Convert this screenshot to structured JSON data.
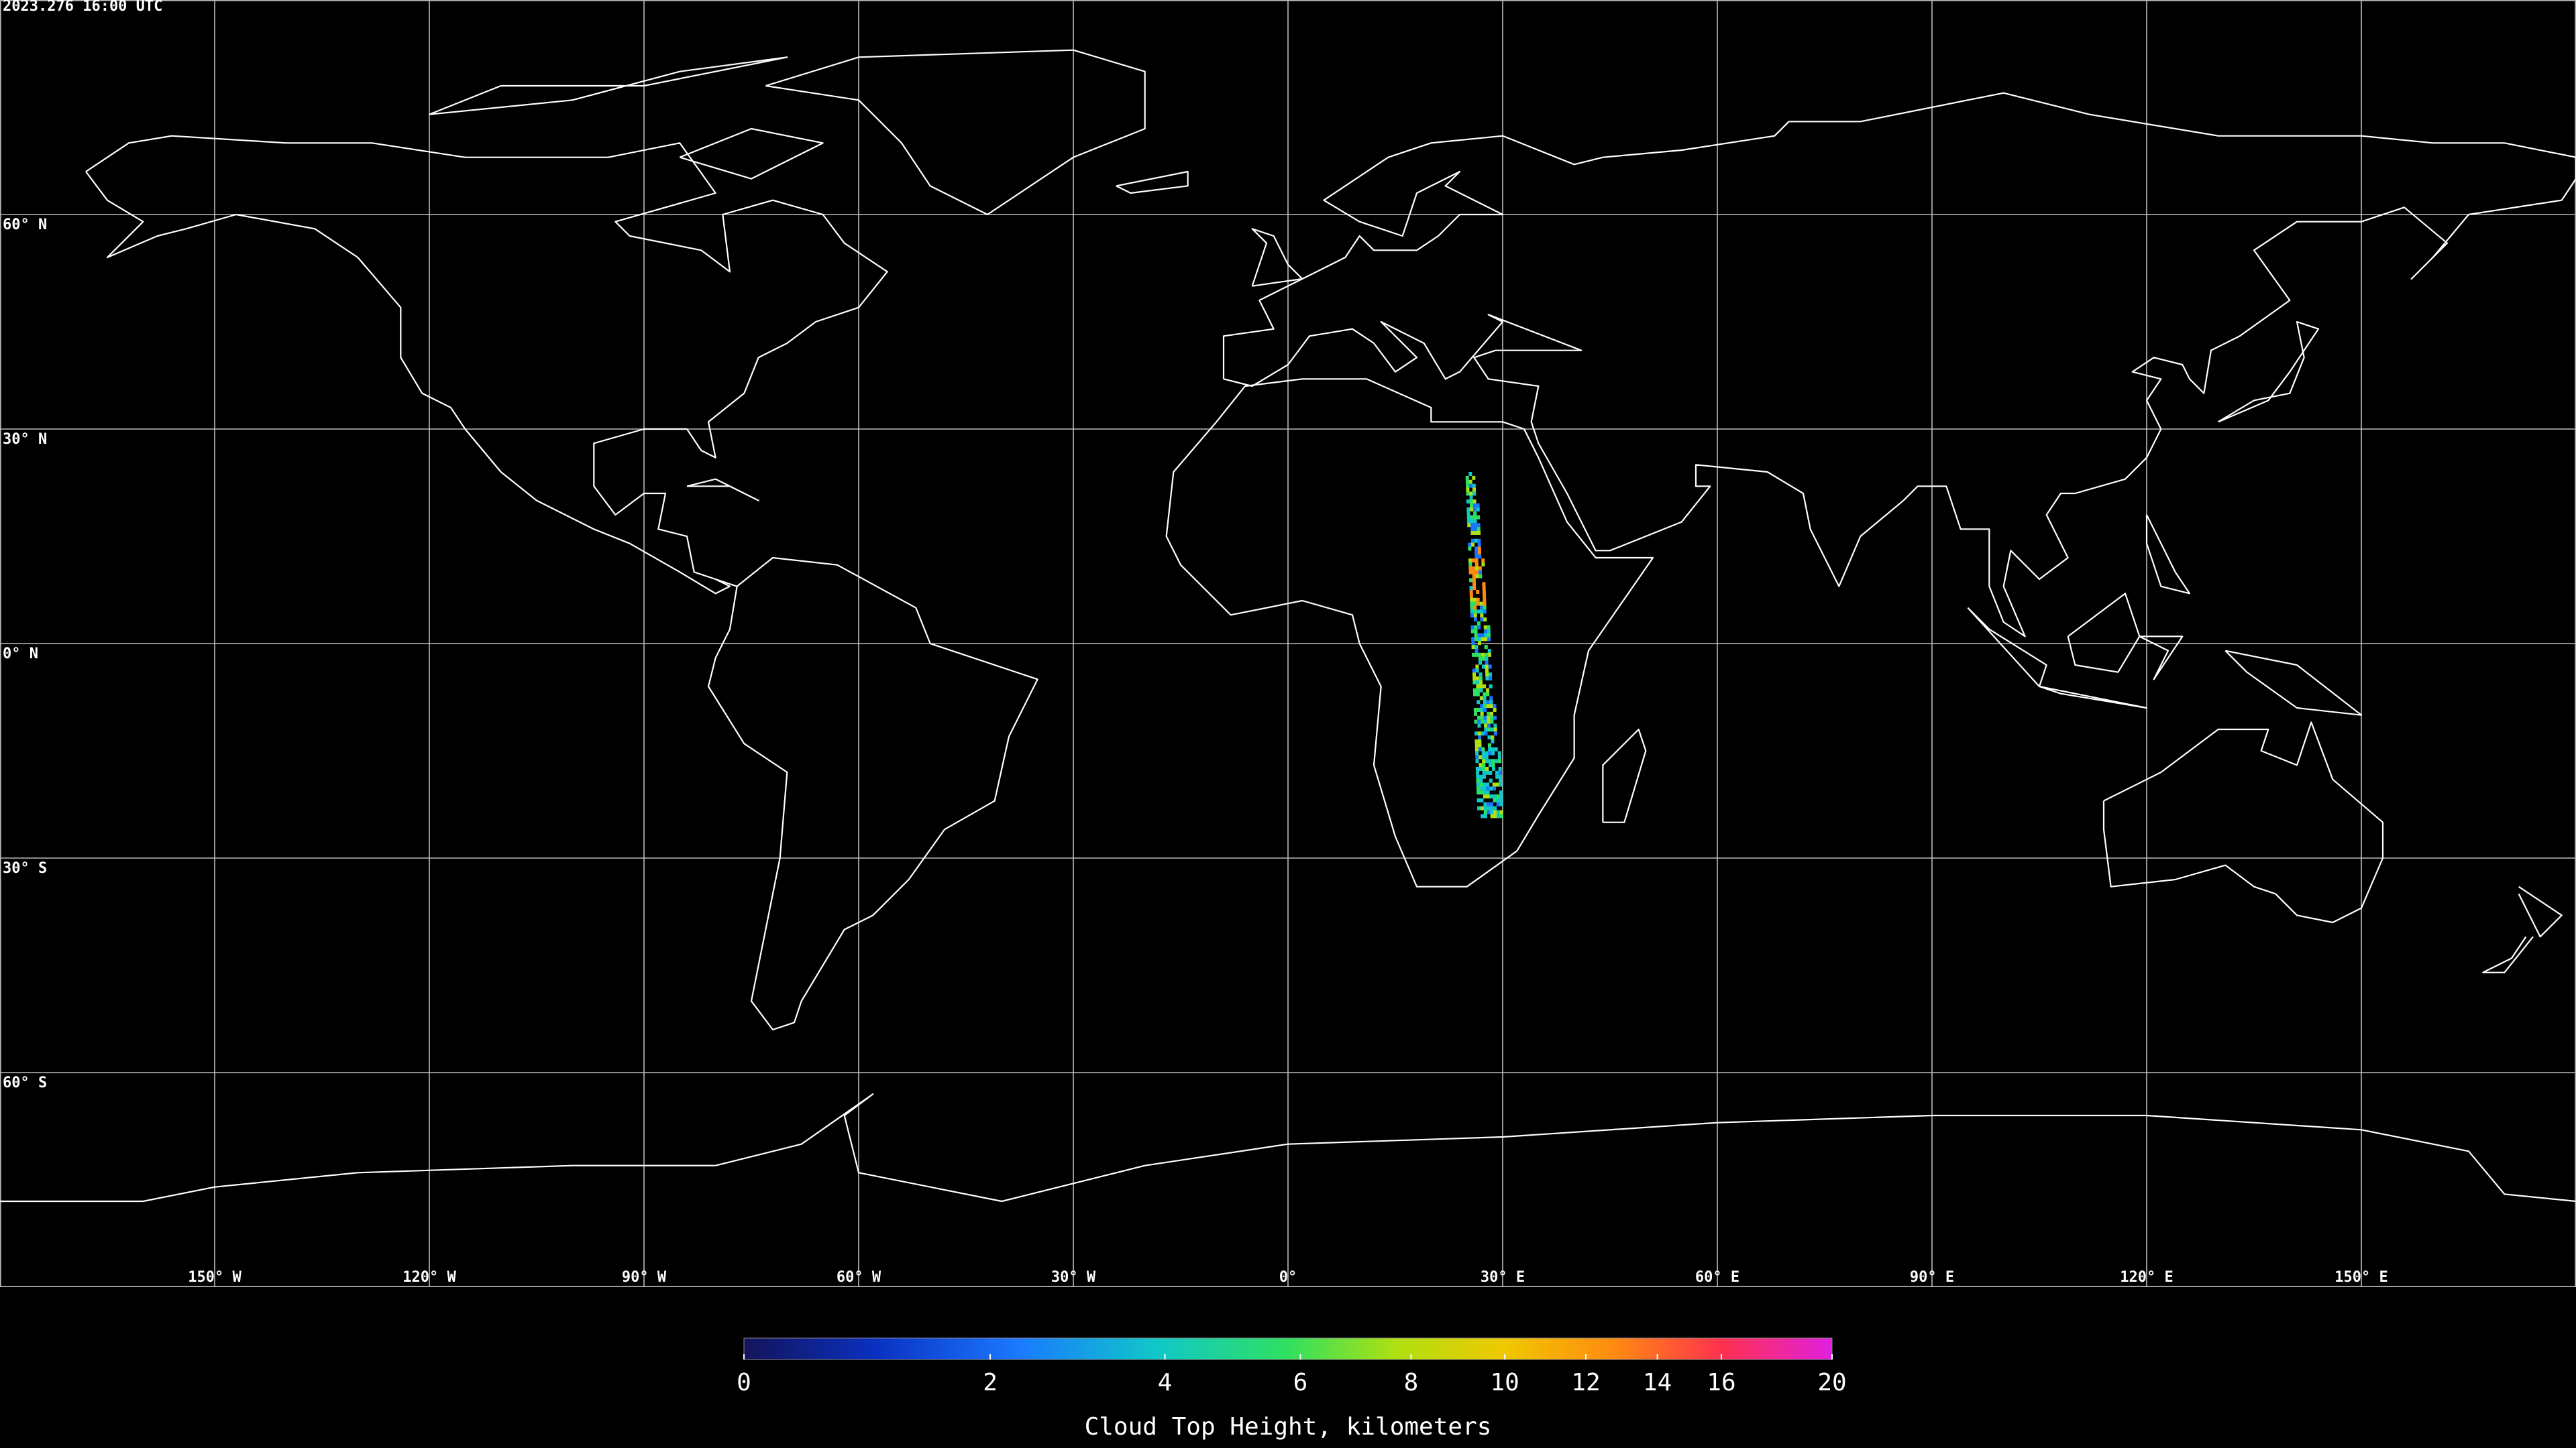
{
  "timestamp": "2023.276 16:00 UTC",
  "map": {
    "latitudes": [
      {
        "value": 60,
        "label": "60° N"
      },
      {
        "value": 30,
        "label": "30° N"
      },
      {
        "value": 0,
        "label": "0° N"
      },
      {
        "value": -30,
        "label": "30° S"
      },
      {
        "value": -60,
        "label": "60° S"
      }
    ],
    "longitudes": [
      {
        "value": -150,
        "label": "150° W"
      },
      {
        "value": -120,
        "label": "120° W"
      },
      {
        "value": -90,
        "label": "90° W"
      },
      {
        "value": -60,
        "label": "60° W"
      },
      {
        "value": -30,
        "label": "30° W"
      },
      {
        "value": 0,
        "label": "0°"
      },
      {
        "value": 30,
        "label": "30° E"
      },
      {
        "value": 60,
        "label": "60° E"
      },
      {
        "value": 90,
        "label": "90° E"
      },
      {
        "value": 120,
        "label": "120° E"
      },
      {
        "value": 150,
        "label": "150° E"
      }
    ]
  },
  "colorbar": {
    "range": [
      0,
      20
    ],
    "ticks": [
      0,
      2,
      4,
      6,
      8,
      10,
      12,
      14,
      16,
      20
    ],
    "label": "Cloud Top Height, kilometers"
  }
}
